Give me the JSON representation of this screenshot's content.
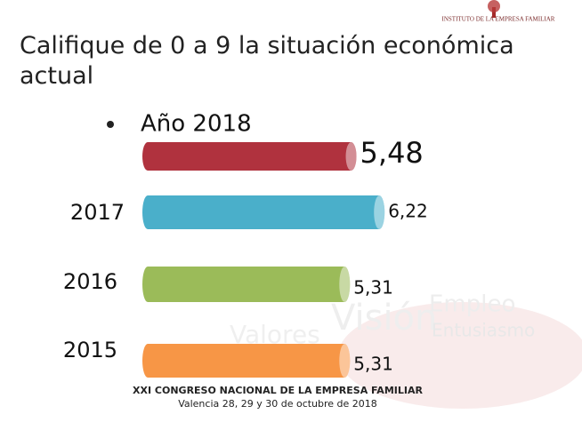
{
  "logo": "INSTITUTO DE LA EMPRESA FAMILIAR",
  "background_words": [
    "Empleo",
    "Visión",
    "Valores",
    "Entusiasmo"
  ],
  "footer": {
    "line1": "XXI CONGRESO NACIONAL DE LA EMPRESA FAMILIAR",
    "line2": "Valencia 28, 29 y 30 de octubre de 2018"
  },
  "chart_data": {
    "type": "bar",
    "orientation": "horizontal",
    "title": "Califique de 0 a 9 la situación económica actual",
    "categories": [
      "Año 2018",
      "2017",
      "2016",
      "2015"
    ],
    "values": [
      5.48,
      6.22,
      5.31,
      5.31
    ],
    "value_labels": [
      "5,48",
      "6,22",
      "5,31",
      "5,31"
    ],
    "colors": [
      "#b0323e",
      "#4aafca",
      "#9bbb59",
      "#f79646"
    ]
  }
}
